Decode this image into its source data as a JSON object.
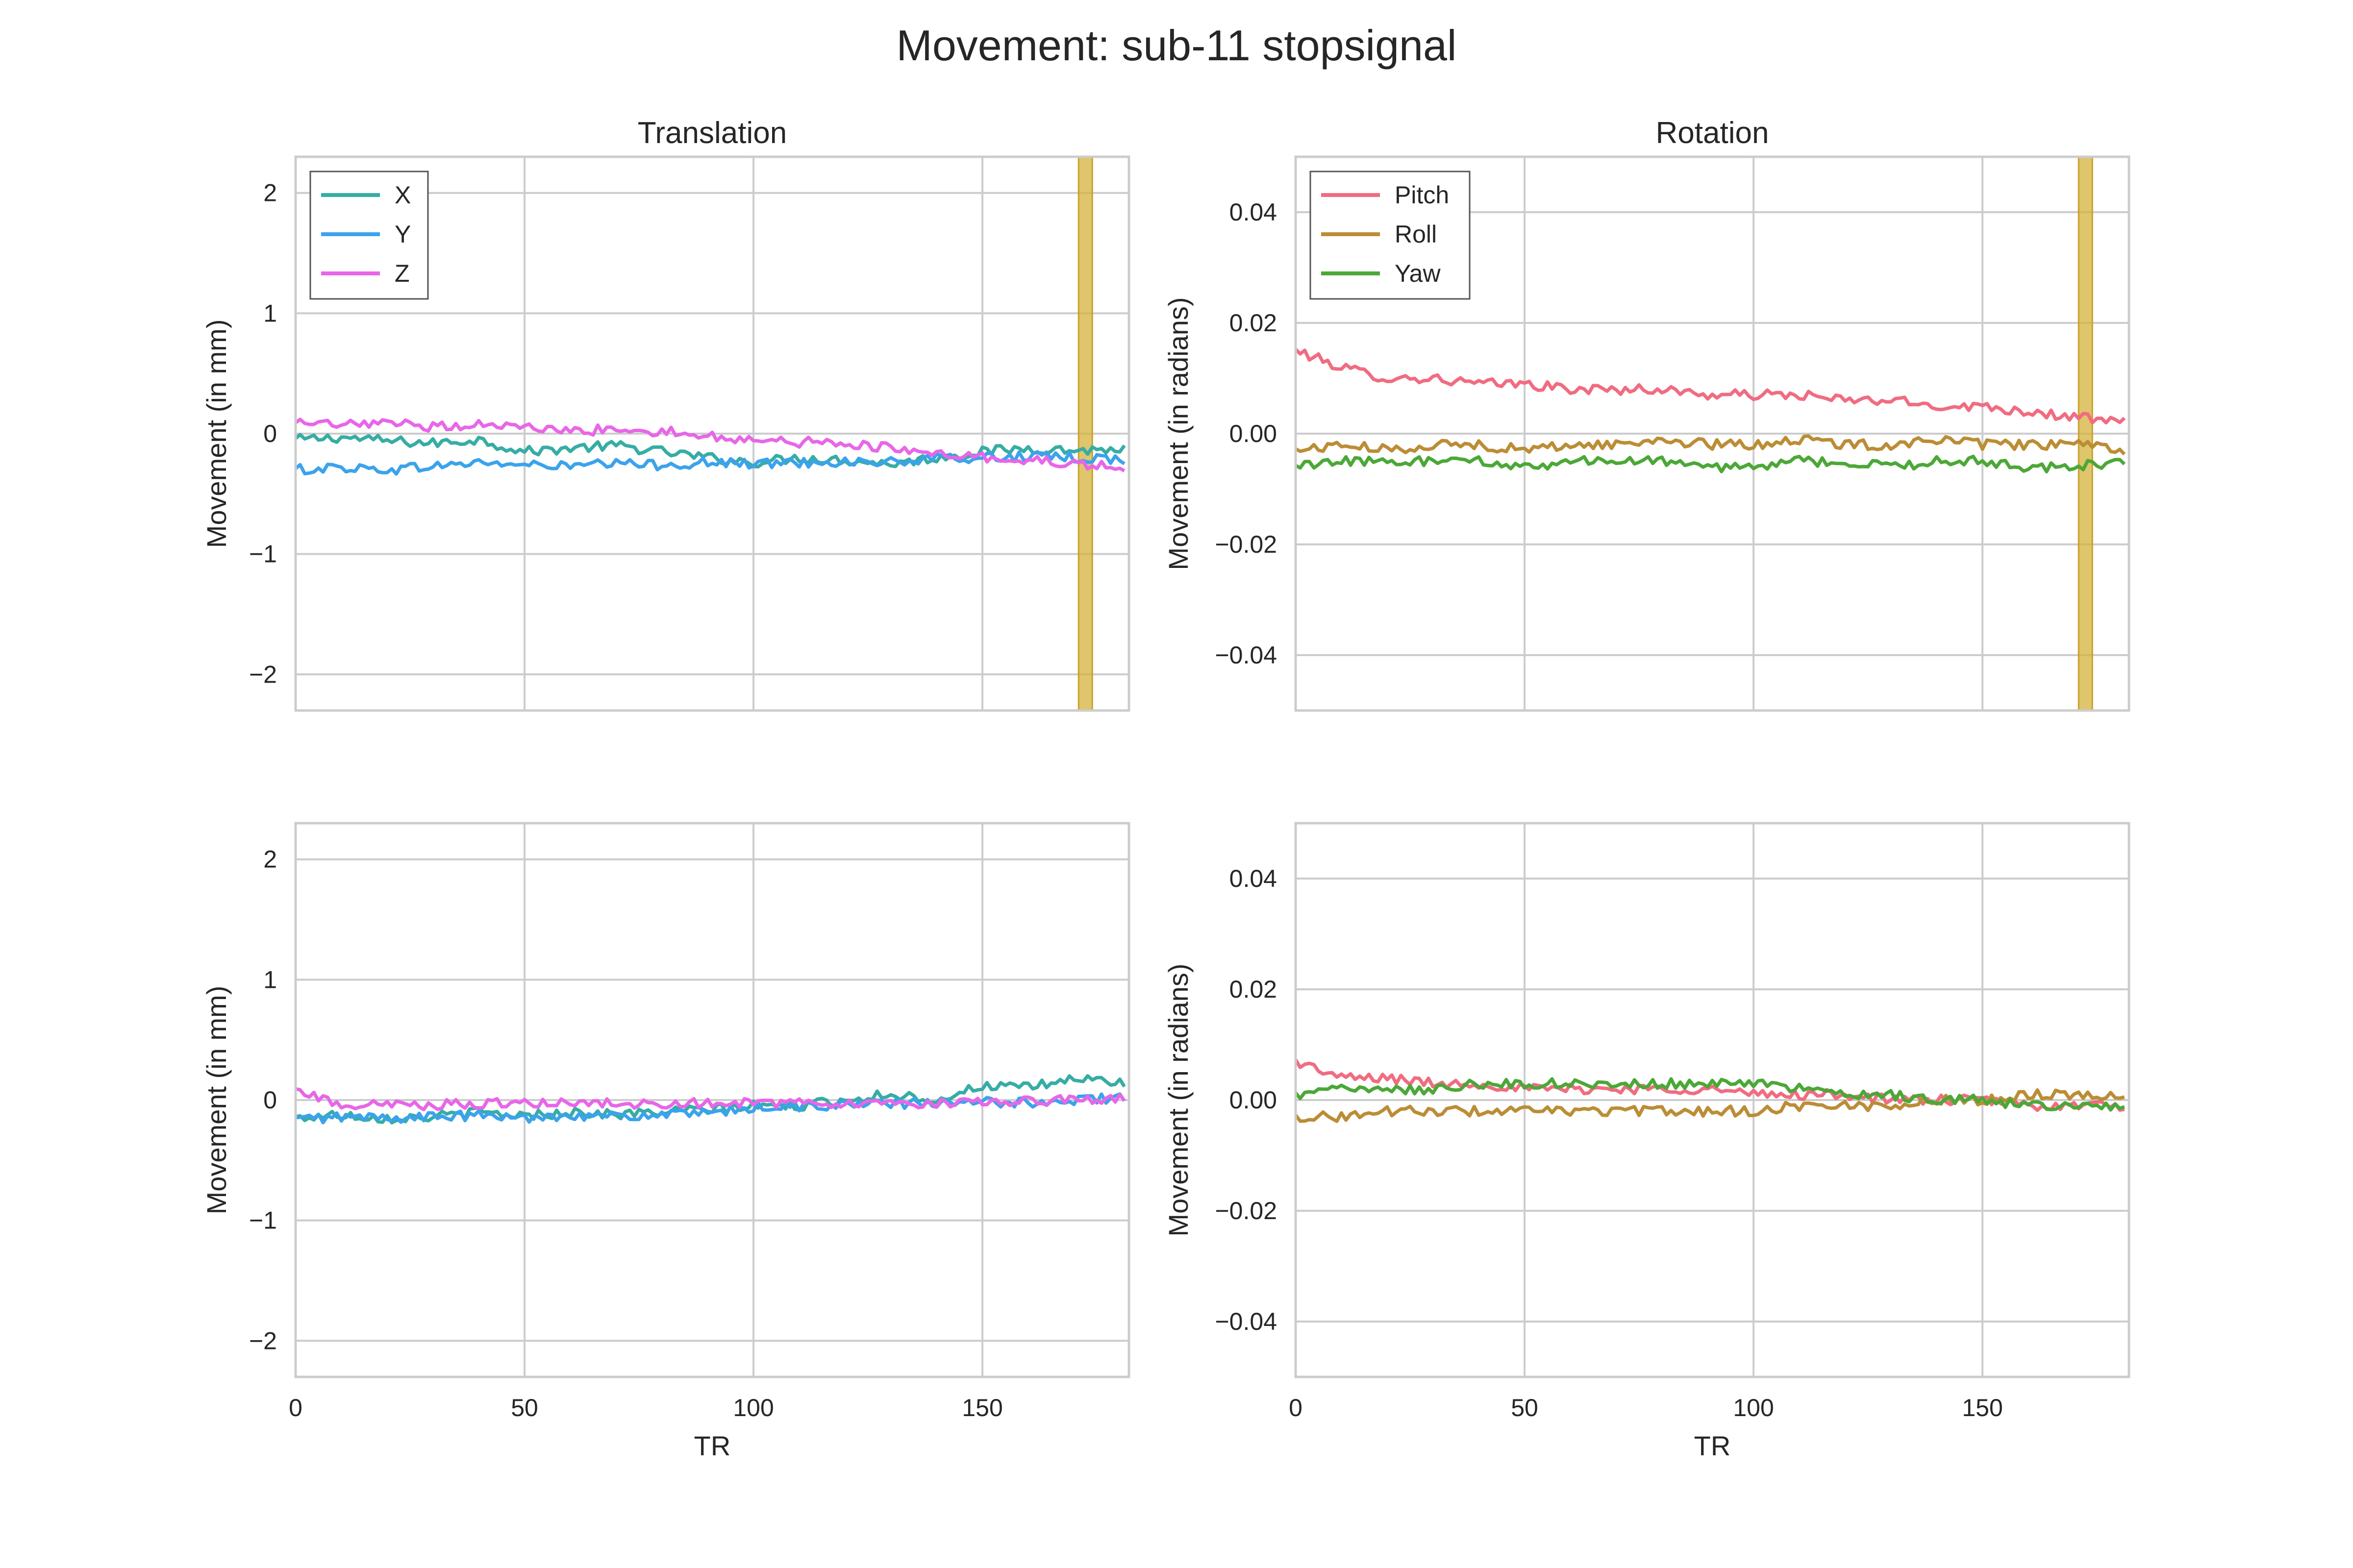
{
  "title": "Movement: sub-11 stopsignal",
  "chart_data": [
    {
      "type": "line",
      "panel": "top-left",
      "title": "Translation",
      "xlabel": "",
      "ylabel": "Movement (in mm)",
      "xlim": [
        0,
        182
      ],
      "ylim": [
        -2.3,
        2.3
      ],
      "xticks": [
        0,
        50,
        100,
        150
      ],
      "xtick_labels": [
        "",
        "",
        "",
        ""
      ],
      "yticks": [
        -2,
        -1,
        0,
        1,
        2
      ],
      "ytick_labels": [
        "−2",
        "−1",
        "0",
        "1",
        "2"
      ],
      "grid": true,
      "legend": "upper-left",
      "highlight_spans": [
        [
          171,
          174
        ]
      ],
      "x": [
        0,
        10,
        20,
        30,
        40,
        50,
        60,
        70,
        80,
        90,
        100,
        110,
        120,
        130,
        140,
        150,
        160,
        170,
        180
      ],
      "series": [
        {
          "name": "X",
          "color": "#36ada4",
          "values": [
            -0.05,
            -0.03,
            -0.06,
            -0.08,
            -0.05,
            -0.15,
            -0.12,
            -0.1,
            -0.15,
            -0.2,
            -0.24,
            -0.2,
            -0.22,
            -0.25,
            -0.2,
            -0.15,
            -0.12,
            -0.14,
            -0.13
          ]
        },
        {
          "name": "Y",
          "color": "#3ba3ec",
          "values": [
            -0.3,
            -0.28,
            -0.3,
            -0.27,
            -0.24,
            -0.26,
            -0.27,
            -0.25,
            -0.26,
            -0.24,
            -0.25,
            -0.24,
            -0.23,
            -0.24,
            -0.21,
            -0.2,
            -0.19,
            -0.2,
            -0.21
          ]
        },
        {
          "name": "Z",
          "color": "#e866e8",
          "values": [
            0.08,
            0.07,
            0.08,
            0.06,
            0.08,
            0.05,
            0.02,
            0.04,
            0.02,
            -0.02,
            -0.05,
            -0.07,
            -0.08,
            -0.12,
            -0.18,
            -0.2,
            -0.22,
            -0.25,
            -0.28
          ]
        }
      ]
    },
    {
      "type": "line",
      "panel": "top-right",
      "title": "Rotation",
      "xlabel": "",
      "ylabel": "Movement (in radians)",
      "xlim": [
        0,
        182
      ],
      "ylim": [
        -0.05,
        0.05
      ],
      "xticks": [
        0,
        50,
        100,
        150
      ],
      "xtick_labels": [
        "",
        "",
        "",
        ""
      ],
      "yticks": [
        -0.04,
        -0.02,
        0.0,
        0.02,
        0.04
      ],
      "ytick_labels": [
        "−0.04",
        "−0.02",
        "0.00",
        "0.02",
        "0.04"
      ],
      "grid": true,
      "legend": "upper-left",
      "highlight_spans": [
        [
          171,
          174
        ]
      ],
      "x": [
        0,
        10,
        20,
        30,
        40,
        50,
        60,
        70,
        80,
        90,
        100,
        110,
        120,
        130,
        140,
        150,
        160,
        170,
        180
      ],
      "series": [
        {
          "name": "Pitch",
          "color": "#f06c81",
          "values": [
            0.015,
            0.012,
            0.01,
            0.01,
            0.009,
            0.009,
            0.008,
            0.008,
            0.008,
            0.007,
            0.007,
            0.007,
            0.006,
            0.006,
            0.005,
            0.005,
            0.004,
            0.003,
            0.002
          ]
        },
        {
          "name": "Roll",
          "color": "#bb8d35",
          "values": [
            -0.003,
            -0.002,
            -0.003,
            -0.002,
            -0.002,
            -0.003,
            -0.002,
            -0.002,
            -0.001,
            -0.002,
            -0.002,
            -0.001,
            -0.002,
            -0.002,
            -0.001,
            -0.002,
            -0.002,
            -0.002,
            -0.003
          ]
        },
        {
          "name": "Yaw",
          "color": "#4ba837",
          "values": [
            -0.006,
            -0.005,
            -0.005,
            -0.005,
            -0.005,
            -0.006,
            -0.005,
            -0.005,
            -0.005,
            -0.006,
            -0.006,
            -0.005,
            -0.005,
            -0.006,
            -0.005,
            -0.005,
            -0.006,
            -0.006,
            -0.005
          ]
        }
      ]
    },
    {
      "type": "line",
      "panel": "bottom-left",
      "title": "",
      "xlabel": "TR",
      "ylabel": "Movement (in mm)",
      "xlim": [
        0,
        182
      ],
      "ylim": [
        -2.3,
        2.3
      ],
      "xticks": [
        0,
        50,
        100,
        150
      ],
      "xtick_labels": [
        "0",
        "50",
        "100",
        "150"
      ],
      "yticks": [
        -2,
        -1,
        0,
        1,
        2
      ],
      "ytick_labels": [
        "−2",
        "−1",
        "0",
        "1",
        "2"
      ],
      "grid": true,
      "legend": "none",
      "highlight_spans": [],
      "x": [
        0,
        10,
        20,
        30,
        40,
        50,
        60,
        70,
        80,
        90,
        100,
        110,
        120,
        130,
        140,
        150,
        160,
        170,
        180
      ],
      "series": [
        {
          "name": "X",
          "color": "#36ada4",
          "values": [
            -0.15,
            -0.12,
            -0.15,
            -0.14,
            -0.1,
            -0.13,
            -0.1,
            -0.12,
            -0.1,
            -0.08,
            -0.05,
            -0.05,
            0.0,
            0.05,
            0.0,
            0.12,
            0.1,
            0.18,
            0.15
          ]
        },
        {
          "name": "Y",
          "color": "#3ba3ec",
          "values": [
            -0.16,
            -0.14,
            -0.15,
            -0.14,
            -0.13,
            -0.15,
            -0.12,
            -0.14,
            -0.12,
            -0.12,
            -0.06,
            -0.05,
            -0.04,
            -0.03,
            -0.03,
            -0.02,
            -0.02,
            0.0,
            0.02
          ]
        },
        {
          "name": "Z",
          "color": "#e866e8",
          "values": [
            0.08,
            -0.03,
            -0.05,
            -0.04,
            -0.03,
            -0.03,
            -0.02,
            -0.03,
            -0.03,
            -0.03,
            -0.02,
            -0.03,
            -0.02,
            -0.03,
            -0.02,
            -0.01,
            -0.01,
            0.0,
            0.01
          ]
        }
      ]
    },
    {
      "type": "line",
      "panel": "bottom-right",
      "title": "",
      "xlabel": "TR",
      "ylabel": "Movement (in radians)",
      "xlim": [
        0,
        182
      ],
      "ylim": [
        -0.05,
        0.05
      ],
      "xticks": [
        0,
        50,
        100,
        150
      ],
      "xtick_labels": [
        "0",
        "50",
        "100",
        "150"
      ],
      "yticks": [
        -0.04,
        -0.02,
        0.0,
        0.02,
        0.04
      ],
      "ytick_labels": [
        "−0.04",
        "−0.02",
        "0.00",
        "0.02",
        "0.04"
      ],
      "grid": true,
      "legend": "none",
      "highlight_spans": [],
      "x": [
        0,
        10,
        20,
        30,
        40,
        50,
        60,
        70,
        80,
        90,
        100,
        110,
        120,
        130,
        140,
        150,
        160,
        170,
        180
      ],
      "series": [
        {
          "name": "Pitch",
          "color": "#f06c81",
          "values": [
            0.007,
            0.004,
            0.004,
            0.003,
            0.003,
            0.002,
            0.002,
            0.002,
            0.002,
            0.002,
            0.001,
            0.001,
            0.001,
            0.0,
            0.0,
            0.0,
            -0.001,
            -0.001,
            -0.001
          ]
        },
        {
          "name": "Roll",
          "color": "#bb8d35",
          "values": [
            -0.003,
            -0.003,
            -0.002,
            -0.002,
            -0.002,
            -0.002,
            -0.002,
            -0.002,
            -0.002,
            -0.002,
            -0.002,
            -0.001,
            -0.001,
            -0.001,
            0.0,
            0.0,
            0.001,
            0.001,
            0.001
          ]
        },
        {
          "name": "Yaw",
          "color": "#4ba837",
          "values": [
            0.001,
            0.002,
            0.002,
            0.002,
            0.003,
            0.003,
            0.003,
            0.003,
            0.003,
            0.003,
            0.003,
            0.002,
            0.001,
            0.001,
            0.0,
            0.0,
            -0.001,
            -0.001,
            -0.001
          ]
        }
      ]
    }
  ]
}
